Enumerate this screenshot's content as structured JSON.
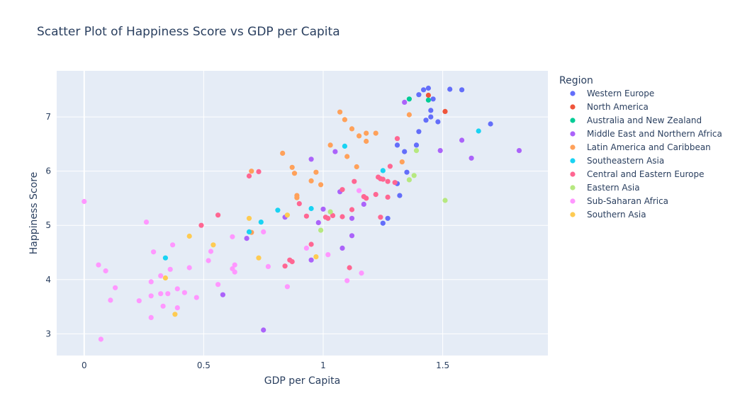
{
  "chart_data": {
    "type": "scatter",
    "title": "Scatter Plot of Happiness Score vs GDP per Capita",
    "xlabel": "GDP per Capita",
    "ylabel": "Happiness Score",
    "xlim": [
      -0.115,
      1.94
    ],
    "ylim": [
      2.6,
      7.85
    ],
    "xticks": [
      0,
      0.5,
      1,
      1.5
    ],
    "xtick_labels": [
      "0",
      "0.5",
      "1",
      "1.5"
    ],
    "yticks": [
      3,
      4,
      5,
      6,
      7
    ],
    "ytick_labels": [
      "3",
      "4",
      "5",
      "6",
      "7"
    ],
    "grid": true,
    "legend_title": "Region",
    "legend_position": "right",
    "series": [
      {
        "name": "Western Europe",
        "color": "#636efa",
        "points": [
          [
            1.4,
            7.41
          ],
          [
            1.42,
            7.5
          ],
          [
            1.44,
            7.53
          ],
          [
            1.46,
            7.33
          ],
          [
            1.53,
            7.51
          ],
          [
            1.58,
            7.5
          ],
          [
            1.43,
            6.94
          ],
          [
            1.45,
            7.0
          ],
          [
            1.45,
            7.12
          ],
          [
            1.48,
            6.91
          ],
          [
            1.4,
            6.73
          ],
          [
            1.7,
            6.87
          ],
          [
            1.31,
            6.48
          ],
          [
            1.34,
            6.36
          ],
          [
            1.39,
            6.48
          ],
          [
            1.35,
            5.98
          ],
          [
            1.31,
            5.77
          ],
          [
            1.32,
            5.55
          ],
          [
            1.27,
            5.13
          ],
          [
            1.25,
            5.04
          ]
        ]
      },
      {
        "name": "North America",
        "color": "#EF553B",
        "points": [
          [
            1.44,
            7.4
          ],
          [
            1.51,
            7.1
          ]
        ]
      },
      {
        "name": "Australia and New Zealand",
        "color": "#00cc96",
        "points": [
          [
            1.36,
            7.33
          ],
          [
            1.44,
            7.31
          ]
        ]
      },
      {
        "name": "Middle East and Northern Africa",
        "color": "#ab63fa",
        "points": [
          [
            1.34,
            7.27
          ],
          [
            1.58,
            6.57
          ],
          [
            1.62,
            6.24
          ],
          [
            1.82,
            6.38
          ],
          [
            1.49,
            6.38
          ],
          [
            1.05,
            6.36
          ],
          [
            0.95,
            6.22
          ],
          [
            1.07,
            5.62
          ],
          [
            1.17,
            5.39
          ],
          [
            1.0,
            5.3
          ],
          [
            0.84,
            5.15
          ],
          [
            0.98,
            5.05
          ],
          [
            1.12,
            5.13
          ],
          [
            1.12,
            4.81
          ],
          [
            0.68,
            4.76
          ],
          [
            1.08,
            4.58
          ],
          [
            0.95,
            4.36
          ],
          [
            0.58,
            3.72
          ],
          [
            0.75,
            3.07
          ]
        ]
      },
      {
        "name": "Latin America and Caribbean",
        "color": "#FFA15A",
        "points": [
          [
            1.07,
            7.09
          ],
          [
            1.09,
            6.95
          ],
          [
            1.36,
            7.04
          ],
          [
            1.12,
            6.78
          ],
          [
            1.18,
            6.7
          ],
          [
            1.22,
            6.7
          ],
          [
            1.15,
            6.65
          ],
          [
            1.18,
            6.55
          ],
          [
            1.03,
            6.48
          ],
          [
            0.83,
            6.33
          ],
          [
            1.1,
            6.27
          ],
          [
            1.33,
            6.17
          ],
          [
            1.14,
            6.08
          ],
          [
            0.87,
            6.07
          ],
          [
            0.7,
            6.0
          ],
          [
            0.97,
            5.98
          ],
          [
            0.88,
            5.96
          ],
          [
            0.95,
            5.82
          ],
          [
            0.99,
            5.75
          ],
          [
            0.89,
            5.55
          ],
          [
            0.89,
            5.51
          ],
          [
            0.7,
            4.87
          ]
        ]
      },
      {
        "name": "Southeastern Asia",
        "color": "#19d3f3",
        "points": [
          [
            1.65,
            6.74
          ],
          [
            1.09,
            6.46
          ],
          [
            1.25,
            6.01
          ],
          [
            0.81,
            5.28
          ],
          [
            0.95,
            5.31
          ],
          [
            0.74,
            5.06
          ],
          [
            0.69,
            4.88
          ],
          [
            0.34,
            4.4
          ]
        ]
      },
      {
        "name": "Central and Eastern Europe",
        "color": "#FF6692",
        "points": [
          [
            1.31,
            6.6
          ],
          [
            1.28,
            6.09
          ],
          [
            1.23,
            5.89
          ],
          [
            1.24,
            5.86
          ],
          [
            1.25,
            5.85
          ],
          [
            1.27,
            5.81
          ],
          [
            1.3,
            5.79
          ],
          [
            1.13,
            5.81
          ],
          [
            1.22,
            5.57
          ],
          [
            1.08,
            5.66
          ],
          [
            1.17,
            5.53
          ],
          [
            1.18,
            5.5
          ],
          [
            1.27,
            5.52
          ],
          [
            0.73,
            5.99
          ],
          [
            0.69,
            5.91
          ],
          [
            0.9,
            5.4
          ],
          [
            1.12,
            5.29
          ],
          [
            0.93,
            5.17
          ],
          [
            1.04,
            5.18
          ],
          [
            1.02,
            5.13
          ],
          [
            1.08,
            5.16
          ],
          [
            1.24,
            5.15
          ],
          [
            0.56,
            5.19
          ],
          [
            0.49,
            5.0
          ],
          [
            0.95,
            4.65
          ],
          [
            0.86,
            4.36
          ],
          [
            0.87,
            4.33
          ],
          [
            0.84,
            4.25
          ],
          [
            1.11,
            4.22
          ],
          [
            1.01,
            5.15
          ]
        ]
      },
      {
        "name": "Eastern Asia",
        "color": "#B6E880",
        "points": [
          [
            1.39,
            6.38
          ],
          [
            1.38,
            5.92
          ],
          [
            1.36,
            5.84
          ],
          [
            1.51,
            5.46
          ],
          [
            1.03,
            5.25
          ],
          [
            0.99,
            4.91
          ]
        ]
      },
      {
        "name": "Sub-Saharan Africa",
        "color": "#FF97FF",
        "points": [
          [
            0.0,
            5.44
          ],
          [
            0.26,
            5.06
          ],
          [
            0.29,
            4.51
          ],
          [
            0.37,
            4.64
          ],
          [
            0.53,
            4.52
          ],
          [
            0.62,
            4.79
          ],
          [
            0.75,
            4.88
          ],
          [
            0.36,
            4.19
          ],
          [
            0.44,
            4.22
          ],
          [
            0.52,
            4.35
          ],
          [
            0.63,
            4.27
          ],
          [
            0.62,
            4.2
          ],
          [
            0.63,
            4.14
          ],
          [
            0.77,
            4.24
          ],
          [
            0.93,
            4.58
          ],
          [
            1.02,
            4.46
          ],
          [
            1.16,
            4.12
          ],
          [
            1.1,
            3.98
          ],
          [
            0.85,
            3.87
          ],
          [
            0.06,
            4.27
          ],
          [
            0.09,
            4.16
          ],
          [
            0.13,
            3.85
          ],
          [
            0.11,
            3.62
          ],
          [
            0.23,
            3.61
          ],
          [
            0.28,
            3.96
          ],
          [
            0.32,
            4.07
          ],
          [
            0.28,
            3.7
          ],
          [
            0.32,
            3.74
          ],
          [
            0.35,
            3.74
          ],
          [
            0.42,
            3.76
          ],
          [
            0.39,
            3.83
          ],
          [
            0.47,
            3.67
          ],
          [
            0.56,
            3.91
          ],
          [
            0.33,
            3.51
          ],
          [
            0.39,
            3.48
          ],
          [
            0.28,
            3.3
          ],
          [
            0.07,
            2.9
          ],
          [
            1.15,
            5.64
          ]
        ]
      },
      {
        "name": "Southern Asia",
        "color": "#FECB52",
        "points": [
          [
            0.69,
            5.13
          ],
          [
            0.54,
            4.64
          ],
          [
            0.44,
            4.8
          ],
          [
            0.85,
            5.19
          ],
          [
            0.73,
            4.4
          ],
          [
            0.97,
            4.42
          ],
          [
            0.34,
            4.03
          ],
          [
            0.38,
            3.36
          ]
        ]
      }
    ]
  }
}
